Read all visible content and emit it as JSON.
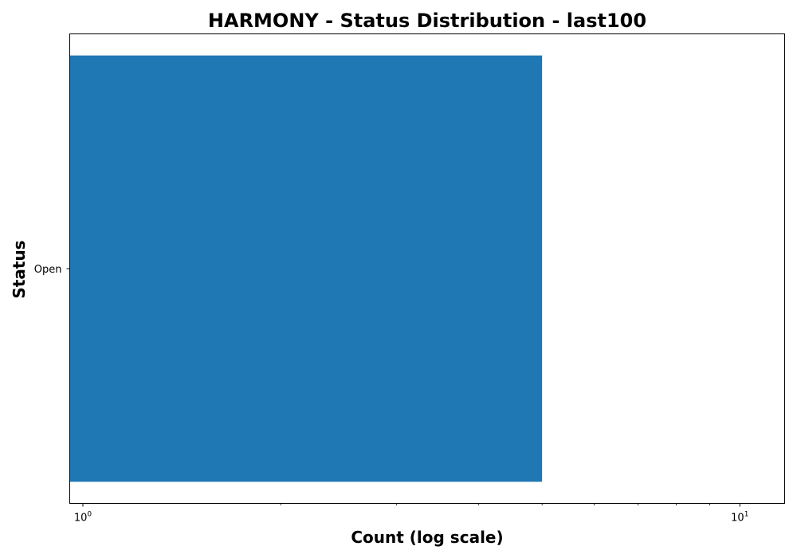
{
  "chart_data": {
    "type": "bar",
    "orientation": "horizontal",
    "title": "HARMONY - Status Distribution - last100",
    "xlabel": "Count (log scale)",
    "ylabel": "Status",
    "x_scale": "log",
    "xlim": [
      0.955,
      11.7
    ],
    "categories": [
      "Open"
    ],
    "values": [
      5
    ],
    "bar_color": "#1f77b4",
    "x_major_ticks": [
      {
        "value": 1,
        "base": "10",
        "exponent": "0"
      },
      {
        "value": 10,
        "base": "10",
        "exponent": "1"
      }
    ],
    "x_minor_ticks": [
      2,
      3,
      4,
      5,
      6,
      7,
      8,
      9
    ],
    "grid": false
  }
}
